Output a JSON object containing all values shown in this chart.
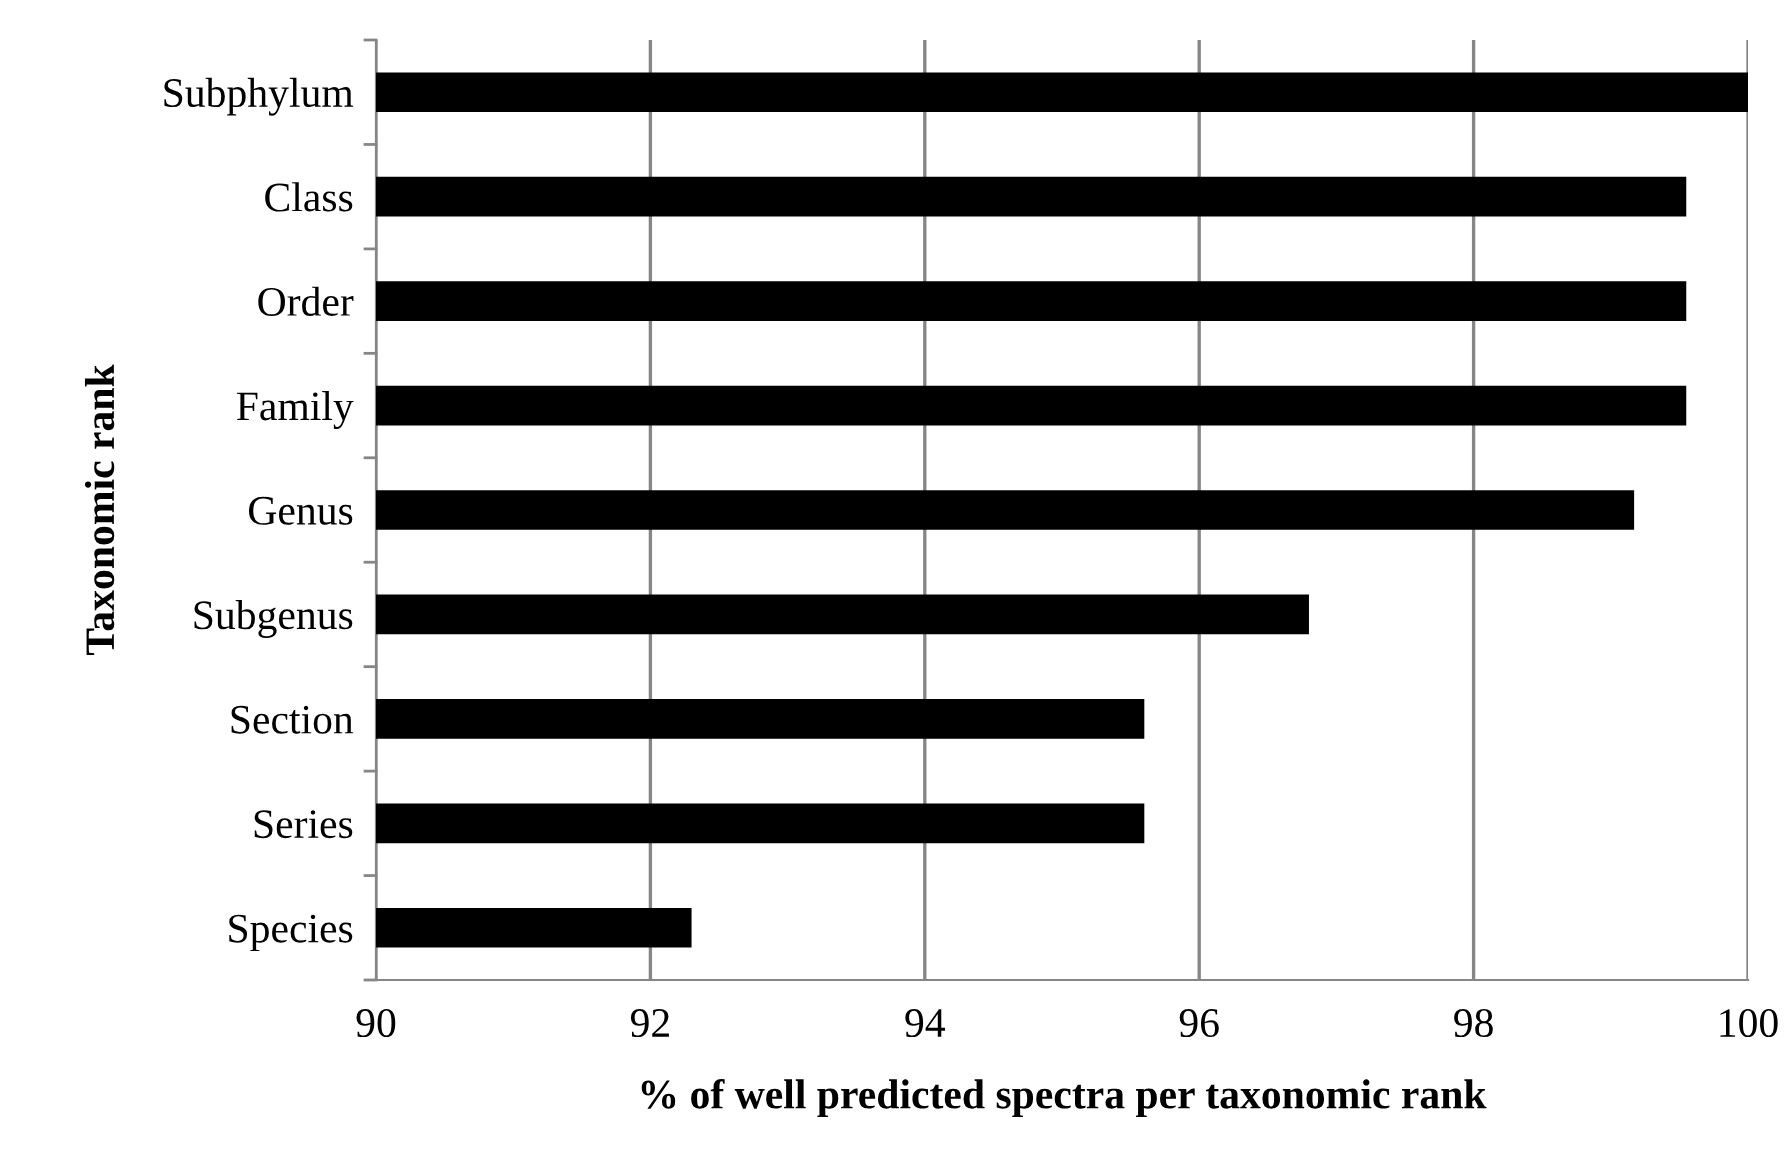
{
  "chart_data": {
    "type": "bar",
    "orientation": "horizontal",
    "categories": [
      "Subphylum",
      "Class",
      "Order",
      "Family",
      "Genus",
      "Subgenus",
      "Section",
      "Series",
      "Species"
    ],
    "values": [
      100,
      99.55,
      99.55,
      99.55,
      99.17,
      96.8,
      95.6,
      95.6,
      92.3
    ],
    "color": "#000000",
    "xlabel": "% of well predicted spectra per taxonomic rank",
    "ylabel": "Taxonomic rank",
    "xlim": [
      90,
      100
    ],
    "xticks": [
      90,
      92,
      94,
      96,
      98,
      100
    ],
    "grid": "x",
    "legend": false
  }
}
